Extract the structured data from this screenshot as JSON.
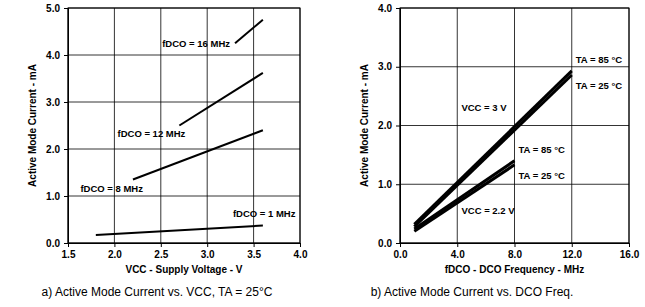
{
  "chart_data": [
    {
      "type": "line",
      "title": "a) Active Mode Current vs. VCC, TA = 25°C",
      "x_label": "VCC - Supply Voltage - V",
      "y_label": "Active Mode Current - mA",
      "xlim": [
        1.5,
        4.0
      ],
      "xticks": [
        1.5,
        {
          "value": 2.0,
          "label": "2.0"
        },
        2.5,
        {
          "value": 3.0,
          "label": "3.0"
        },
        3.5,
        {
          "value": 4.0,
          "label": "4.0"
        }
      ],
      "ylim": [
        0,
        5
      ],
      "yticks": [
        {
          "value": 0,
          "label": "0.0"
        },
        {
          "value": 1,
          "label": "1.0"
        },
        {
          "value": 2,
          "label": "2.0"
        },
        {
          "value": 3,
          "label": "3.0"
        },
        {
          "value": 4,
          "label": "4.0"
        },
        {
          "value": 5,
          "label": "5.0"
        }
      ],
      "grid": true,
      "series": [
        {
          "name": "fDCO = 1 MHz",
          "color": "#000000",
          "x": [
            1.8,
            3.6
          ],
          "values": [
            0.17,
            0.37
          ]
        },
        {
          "name": "fDCO = 8 MHz",
          "color": "#000000",
          "x": [
            2.2,
            3.6
          ],
          "values": [
            1.35,
            2.4
          ]
        },
        {
          "name": "fDCO = 12 MHz",
          "color": "#000000",
          "x": [
            2.7,
            3.6
          ],
          "values": [
            2.5,
            3.62
          ]
        },
        {
          "name": "fDCO = 16 MHz",
          "color": "#000000",
          "x": [
            3.3,
            3.6
          ],
          "values": [
            4.25,
            4.75
          ]
        }
      ]
    },
    {
      "type": "line",
      "title": "b) Active Mode Current vs. DCO Freq.",
      "x_label": "fDCO - DCO Frequency - MHz",
      "y_label": "Active Mode Current - mA",
      "xlim": [
        0,
        16
      ],
      "xticks": [
        {
          "value": 0,
          "label": "0.0"
        },
        {
          "value": 4,
          "label": "4.0"
        },
        {
          "value": 8,
          "label": "8.0"
        },
        {
          "value": 12,
          "label": "12.0"
        },
        {
          "value": 16,
          "label": "16.0"
        }
      ],
      "ylim": [
        0,
        4
      ],
      "yticks": [
        {
          "value": 0,
          "label": "0.0"
        },
        {
          "value": 1,
          "label": "1.0"
        },
        {
          "value": 2,
          "label": "2.0"
        },
        {
          "value": 3,
          "label": "3.0"
        },
        {
          "value": 4,
          "label": "4.0"
        }
      ],
      "grid": true,
      "annotations": [
        "VCC = 3 V",
        "VCC = 2.2 V"
      ],
      "series": [
        {
          "name": "TA = 85 °C",
          "color": "#000000",
          "x": [
            1,
            12
          ],
          "values": [
            0.32,
            2.93
          ]
        },
        {
          "name": "TA = 25 °C",
          "color": "#000000",
          "x": [
            1,
            12
          ],
          "values": [
            0.28,
            2.86
          ]
        },
        {
          "name": "TA = 85 °C",
          "color": "#000000",
          "x": [
            1,
            8
          ],
          "values": [
            0.24,
            1.4
          ]
        },
        {
          "name": "TA = 25 °C",
          "color": "#000000",
          "x": [
            1,
            8
          ],
          "values": [
            0.2,
            1.33
          ]
        }
      ]
    }
  ]
}
